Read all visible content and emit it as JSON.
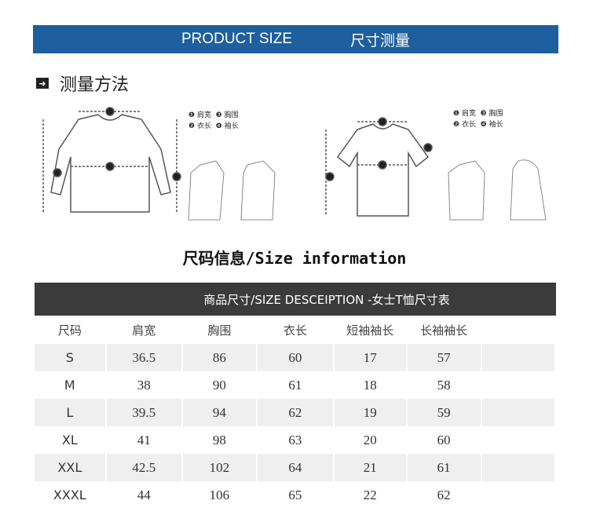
{
  "banner": {
    "en": "PRODUCT SIZE",
    "cn": "尺寸测量"
  },
  "method": {
    "icon": "arrow-right-icon",
    "title": "测量方法"
  },
  "legend": {
    "n1": "❶",
    "l1": "肩宽",
    "n3": "❸",
    "l3": "胸围",
    "n2": "❷",
    "l2": "衣长",
    "n4": "❹",
    "l4": "袖长"
  },
  "size_title": "尺码信息/Size information",
  "table": {
    "caption": "商品尺寸/SIZE DESCEIPTION -女士T恤尺寸表",
    "headers": [
      "尺码",
      "肩宽",
      "胸围",
      "衣长",
      "短袖袖长",
      "长袖袖长",
      ""
    ],
    "rows": [
      [
        "S",
        "36.5",
        "86",
        "60",
        "17",
        "57",
        ""
      ],
      [
        "M",
        "38",
        "90",
        "61",
        "18",
        "58",
        ""
      ],
      [
        "L",
        "39.5",
        "94",
        "62",
        "19",
        "59",
        ""
      ],
      [
        "XL",
        "41",
        "98",
        "63",
        "20",
        "60",
        ""
      ],
      [
        "XXL",
        "42.5",
        "102",
        "64",
        "21",
        "61",
        ""
      ],
      [
        "XXXL",
        "44",
        "106",
        "65",
        "22",
        "62",
        ""
      ]
    ]
  }
}
